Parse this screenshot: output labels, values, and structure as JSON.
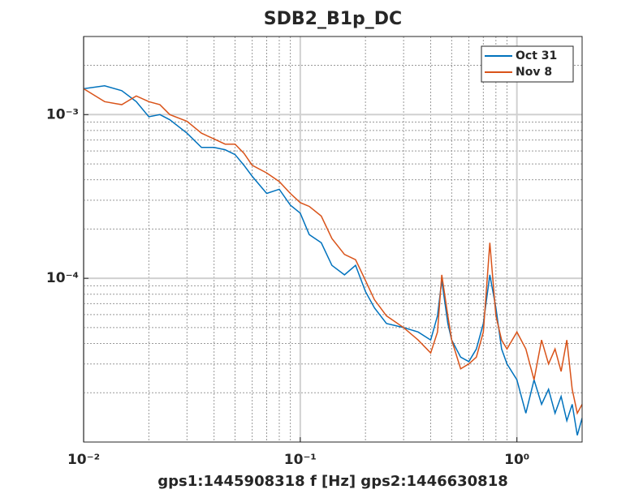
{
  "chart_data": {
    "type": "line",
    "title": "SDB2_B1p_DC",
    "x_label": "gps1:1445908318  f [Hz]  gps2:1446630818",
    "x_scale": "log",
    "y_scale": "log",
    "grid": true,
    "legend_position": "northeast",
    "xlim": [
      0.01,
      2
    ],
    "ylim": [
      1e-05,
      0.003
    ],
    "xticks": [
      {
        "value": 0.01,
        "label": "10⁻²"
      },
      {
        "value": 0.1,
        "label": "10⁻¹"
      },
      {
        "value": 1,
        "label": "10⁰"
      }
    ],
    "yticks": [
      {
        "value": 0.0001,
        "label": "10⁻⁴"
      },
      {
        "value": 0.001,
        "label": "10⁻³"
      }
    ],
    "xminorticks": [
      0.02,
      0.03,
      0.04,
      0.05,
      0.06,
      0.07,
      0.08,
      0.09,
      0.2,
      0.3,
      0.4,
      0.5,
      0.6,
      0.7,
      0.8,
      0.9
    ],
    "yminorticks": [
      2e-05,
      3e-05,
      4e-05,
      5e-05,
      6e-05,
      7e-05,
      8e-05,
      9e-05,
      0.0002,
      0.0003,
      0.0004,
      0.0005,
      0.0006,
      0.0007,
      0.0008,
      0.0009,
      0.002,
      0.003
    ],
    "x": [
      0.01,
      0.0125,
      0.015,
      0.0175,
      0.02,
      0.0225,
      0.025,
      0.03,
      0.035,
      0.04,
      0.045,
      0.05,
      0.055,
      0.06,
      0.07,
      0.08,
      0.09,
      0.1,
      0.11,
      0.125,
      0.14,
      0.16,
      0.18,
      0.2,
      0.22,
      0.25,
      0.3,
      0.35,
      0.4,
      0.43,
      0.45,
      0.48,
      0.5,
      0.55,
      0.6,
      0.65,
      0.7,
      0.75,
      0.8,
      0.85,
      0.9,
      1.0,
      1.1,
      1.2,
      1.3,
      1.4,
      1.5,
      1.6,
      1.7,
      1.8,
      1.9,
      2.0
    ],
    "series": [
      {
        "name": "Oct 31",
        "color": "#0072bd",
        "values": [
          0.00144,
          0.0015,
          0.0014,
          0.0012,
          0.00097,
          0.001,
          0.00093,
          0.00077,
          0.00063,
          0.00063,
          0.00061,
          0.00057,
          0.00049,
          0.00042,
          0.00033,
          0.00035,
          0.00028,
          0.00025,
          0.000185,
          0.000165,
          0.00012,
          0.000105,
          0.00012,
          8.3e-05,
          6.6e-05,
          5.3e-05,
          5e-05,
          4.7e-05,
          4.2e-05,
          5.9e-05,
          9.7e-05,
          5.3e-05,
          4.2e-05,
          3.3e-05,
          3.1e-05,
          3.7e-05,
          5.3e-05,
          0.000105,
          6.6e-05,
          3.7e-05,
          3e-05,
          2.4e-05,
          1.5e-05,
          2.4e-05,
          1.7e-05,
          2.1e-05,
          1.5e-05,
          1.9e-05,
          1.35e-05,
          1.7e-05,
          1.1e-05,
          1.4e-05
        ]
      },
      {
        "name": "Nov 8",
        "color": "#d95319",
        "values": [
          0.00144,
          0.0012,
          0.00115,
          0.0013,
          0.0012,
          0.00115,
          0.001,
          0.00091,
          0.00077,
          0.00071,
          0.00066,
          0.00066,
          0.00058,
          0.00049,
          0.00044,
          0.00039,
          0.00033,
          0.00029,
          0.000275,
          0.00024,
          0.000175,
          0.00014,
          0.00013,
          9.7e-05,
          7.4e-05,
          5.9e-05,
          5e-05,
          4.2e-05,
          3.5e-05,
          4.7e-05,
          0.000105,
          5.9e-05,
          4.2e-05,
          2.8e-05,
          3e-05,
          3.3e-05,
          4.7e-05,
          0.000165,
          5.9e-05,
          4.2e-05,
          3.7e-05,
          4.7e-05,
          3.7e-05,
          2.4e-05,
          4.2e-05,
          3e-05,
          3.7e-05,
          2.7e-05,
          4.2e-05,
          2.1e-05,
          1.5e-05,
          1.7e-05
        ]
      }
    ]
  }
}
